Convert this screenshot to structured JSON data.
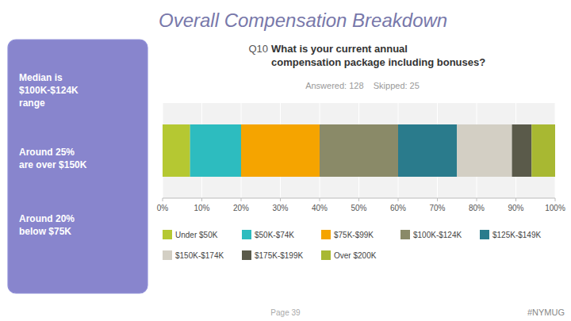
{
  "chart_data": {
    "type": "bar",
    "orientation": "horizontal",
    "stacked": true,
    "title": "Overall Compensation Breakdown",
    "annotations": [
      "Q10",
      "What is your current annual\ncompensation package including bonuses?",
      "Answered: 128    Skipped: 25",
      "Median is\n$100K-$124K\nrange",
      "Around 25%\nare over $150K",
      "Around 20%\nbelow $75K",
      "Page 39",
      "#NYMUG"
    ],
    "categories": [
      null
    ],
    "series": [
      {
        "name": "Under $50K",
        "color": "#b5c832",
        "values": [
          7
        ]
      },
      {
        "name": "$50K-$74K",
        "color": "#2dbcbf",
        "values": [
          13
        ]
      },
      {
        "name": "$75K-$99K",
        "color": "#f5a400",
        "values": [
          20
        ]
      },
      {
        "name": "$100K-$124K",
        "color": "#8a8a68",
        "values": [
          20
        ]
      },
      {
        "name": "$125K-$149K",
        "color": "#2a7b8c",
        "values": [
          15
        ]
      },
      {
        "name": "$150K-$174K",
        "color": "#d3cfc4",
        "values": [
          14
        ]
      },
      {
        "name": "$175K-$199K",
        "color": "#5a5a4a",
        "values": [
          5
        ]
      },
      {
        "name": "Over $200K",
        "color": "#a8b832",
        "values": [
          6
        ]
      }
    ],
    "xlim": [
      0,
      100
    ],
    "xticks": [
      {
        "value": 0,
        "label": "0%"
      },
      {
        "value": 10,
        "label": "10%"
      },
      {
        "value": 20,
        "label": "20%"
      },
      {
        "value": 30,
        "label": "30%"
      },
      {
        "value": 40,
        "label": "40%"
      },
      {
        "value": 50,
        "label": "50%"
      },
      {
        "value": 60,
        "label": "60%"
      },
      {
        "value": 70,
        "label": "70%"
      },
      {
        "value": 80,
        "label": "80%"
      },
      {
        "value": 90,
        "label": "90%"
      },
      {
        "value": 100,
        "label": "100%"
      }
    ],
    "grid": true,
    "legend": "bottom"
  }
}
